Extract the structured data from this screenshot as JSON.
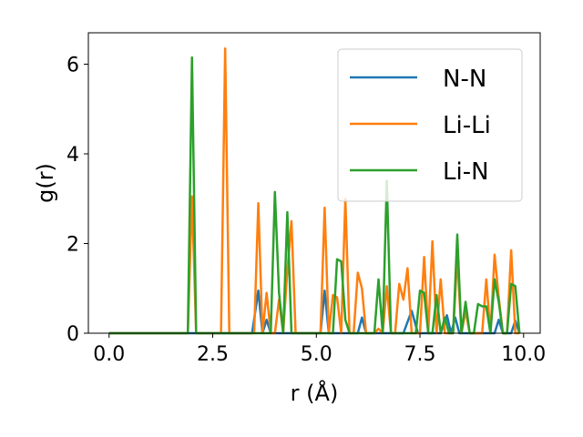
{
  "chart_data": {
    "type": "line",
    "xlabel": "r (Å)",
    "ylabel": "g(r)",
    "xlim": [
      -0.5,
      10.4
    ],
    "ylim": [
      0,
      6.7
    ],
    "xticks": [
      0.0,
      2.5,
      5.0,
      7.5,
      10.0
    ],
    "xtick_labels": [
      "0.0",
      "2.5",
      "5.0",
      "7.5",
      "10.0"
    ],
    "yticks": [
      0,
      2,
      4,
      6
    ],
    "ytick_labels": [
      "0",
      "2",
      "4",
      "6"
    ],
    "grid": false,
    "legend_position": "top-right",
    "series": [
      {
        "name": "N-N",
        "color": "#1f77b4",
        "x": [
          0,
          3.45,
          3.6,
          3.7,
          3.8,
          3.9,
          4.0,
          5.1,
          5.2,
          5.3,
          6.0,
          6.1,
          6.2,
          7.1,
          7.3,
          7.45,
          7.55,
          8.0,
          8.15,
          8.25,
          8.35,
          8.45,
          8.55,
          9.3,
          9.4,
          9.5,
          9.7,
          9.8,
          9.9
        ],
        "y": [
          0,
          0,
          0.95,
          0,
          0.3,
          0,
          0,
          0,
          0.95,
          0,
          0,
          0.35,
          0,
          0,
          0.5,
          0,
          0,
          0,
          0.4,
          0,
          0.35,
          0,
          0,
          0,
          0.3,
          0,
          0,
          0.28,
          0
        ]
      },
      {
        "name": "Li-Li",
        "color": "#ff7f0e",
        "x": [
          0,
          1.9,
          2.0,
          2.1,
          2.7,
          2.8,
          2.9,
          3.5,
          3.6,
          3.7,
          3.8,
          3.9,
          4.0,
          4.1,
          4.2,
          4.3,
          4.4,
          4.5,
          4.6,
          5.1,
          5.2,
          5.3,
          5.4,
          5.5,
          5.6,
          5.7,
          5.8,
          5.9,
          6.0,
          6.1,
          6.2,
          6.3,
          6.4,
          6.5,
          6.6,
          6.7,
          6.8,
          6.9,
          7.0,
          7.1,
          7.2,
          7.3,
          7.4,
          7.5,
          7.6,
          7.7,
          7.8,
          7.9,
          8.0,
          8.1,
          8.2,
          8.3,
          8.4,
          8.5,
          8.6,
          8.7,
          8.8,
          8.9,
          9.0,
          9.1,
          9.2,
          9.3,
          9.4,
          9.5,
          9.6,
          9.7,
          9.8,
          9.9
        ],
        "y": [
          0,
          0,
          3.05,
          0,
          0,
          6.35,
          0,
          0,
          2.9,
          0,
          0.9,
          0,
          0,
          0.75,
          0,
          1.4,
          2.5,
          0,
          0,
          0,
          2.8,
          0,
          0.85,
          0.8,
          0,
          3.0,
          0,
          0,
          1.35,
          1.0,
          0,
          0,
          0,
          0.1,
          0,
          1.05,
          0,
          0,
          1.1,
          0.75,
          1.45,
          0,
          0,
          0,
          1.7,
          0,
          2.05,
          0,
          1.2,
          0,
          0,
          0,
          1.7,
          0,
          0.5,
          0,
          0,
          0,
          0,
          1.2,
          0,
          1.75,
          0.8,
          0,
          0,
          1.85,
          0,
          0
        ]
      },
      {
        "name": "Li-N",
        "color": "#2ca02c",
        "x": [
          0,
          1.8,
          1.9,
          2.0,
          2.1,
          2.2,
          3.8,
          3.9,
          4.0,
          4.1,
          4.2,
          4.3,
          4.4,
          5.2,
          5.3,
          5.4,
          5.5,
          5.6,
          5.7,
          5.8,
          6.3,
          6.4,
          6.5,
          6.6,
          6.7,
          6.8,
          6.9,
          7.3,
          7.4,
          7.5,
          7.6,
          7.7,
          7.8,
          7.9,
          8.0,
          8.1,
          8.2,
          8.3,
          8.4,
          8.5,
          8.6,
          8.7,
          8.8,
          8.9,
          9.0,
          9.1,
          9.2,
          9.3,
          9.4,
          9.5,
          9.6,
          9.7,
          9.8,
          9.9
        ],
        "y": [
          0,
          0,
          0,
          6.15,
          0,
          0,
          0,
          0,
          3.15,
          0.9,
          0,
          2.7,
          0,
          0,
          0,
          0,
          1.65,
          1.6,
          0.3,
          0,
          0,
          0,
          1.2,
          0,
          3.4,
          0,
          0,
          0,
          0,
          0.95,
          0.9,
          0,
          0,
          0.85,
          0,
          0.35,
          0,
          0,
          2.2,
          0,
          0.7,
          0,
          0,
          0.65,
          0.6,
          0.6,
          0,
          1.2,
          0.7,
          0,
          0,
          1.1,
          1.05,
          0
        ]
      }
    ]
  }
}
